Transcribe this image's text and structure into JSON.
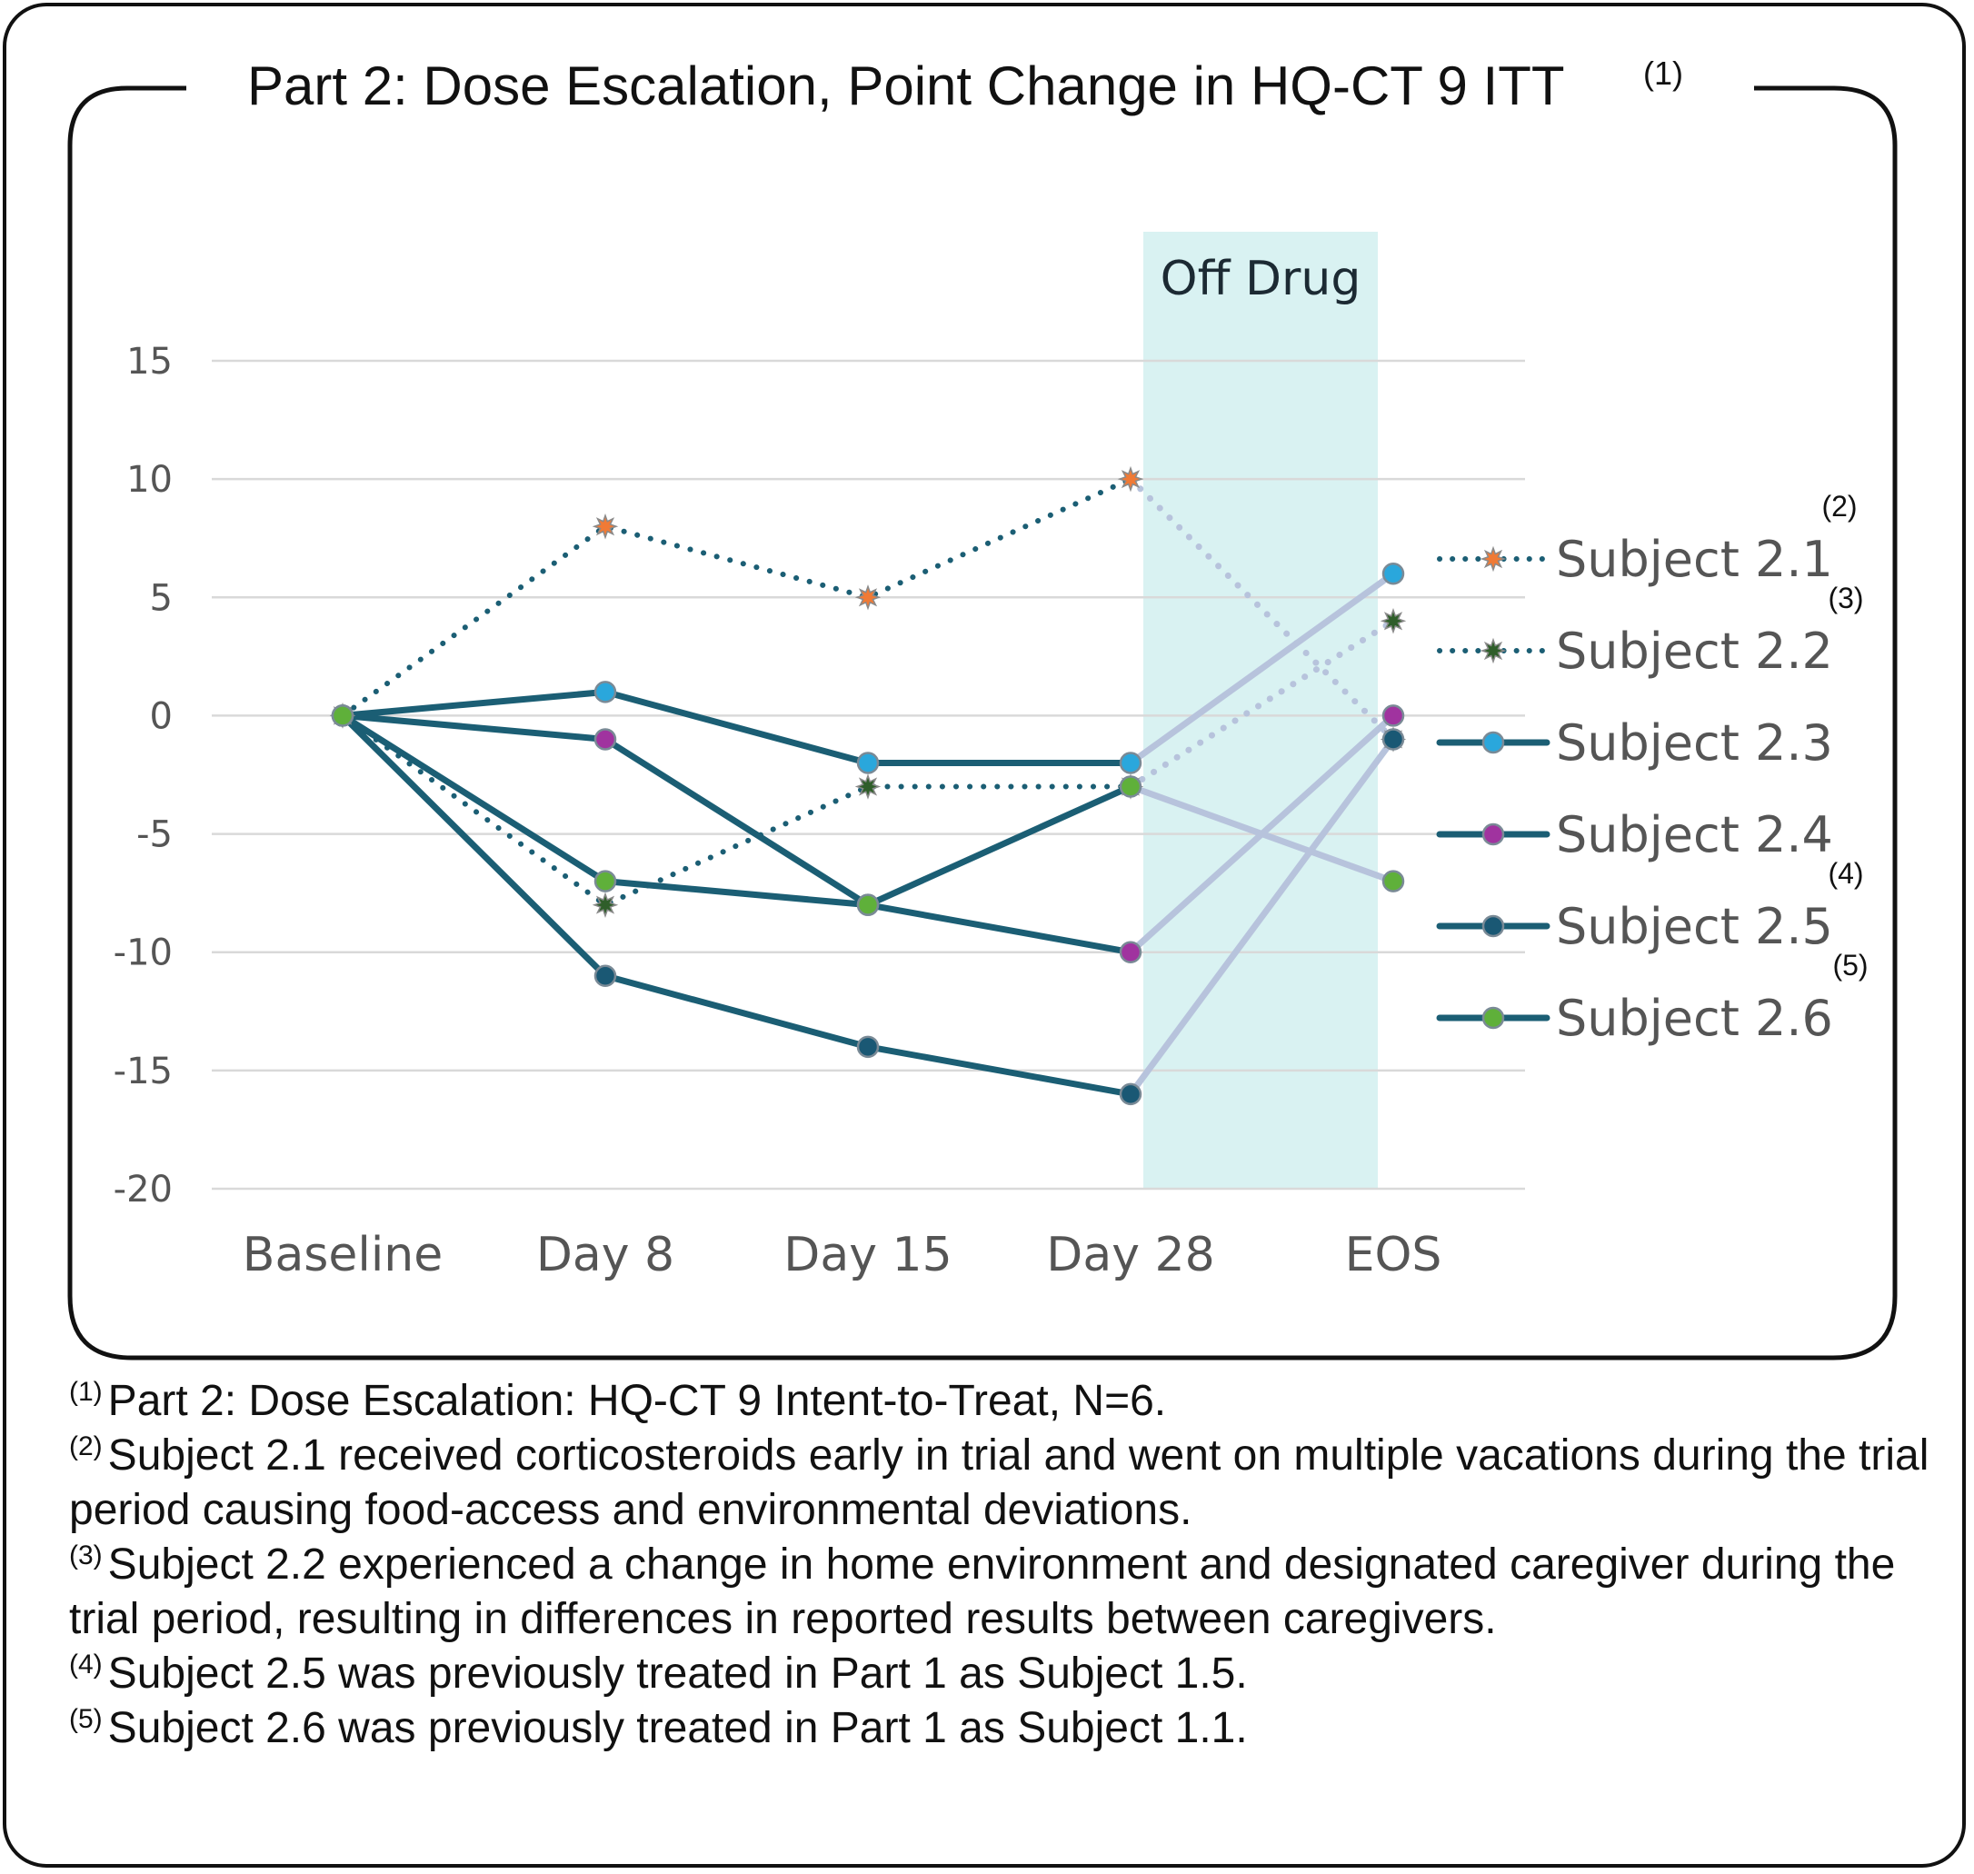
{
  "chart_data": {
    "type": "line",
    "title": "Part 2: Dose Escalation, Point Change in HQ-CT 9 ITT",
    "title_note": "(1)",
    "categories": [
      "Baseline",
      "Day 8",
      "Day 15",
      "Day 28",
      "EOS"
    ],
    "ylim": [
      -20,
      15
    ],
    "yticks": [
      15,
      10,
      5,
      0,
      -5,
      -10,
      -15,
      -20
    ],
    "ytick_labels": [
      "15",
      "10",
      "5",
      "0",
      "-5",
      "-10",
      "-15",
      "-20"
    ],
    "grid": true,
    "legend_position": "right",
    "shaded_region": {
      "label": "Off Drug",
      "from": "Day 28",
      "to": "EOS",
      "color": "#d9f2f2"
    },
    "series": [
      {
        "name": "Subject 2.1",
        "note": "(2)",
        "values": [
          0,
          8,
          5,
          10,
          -1
        ],
        "line_style": "dotted",
        "line_color": "#1b5e74",
        "marker_color": "#f07a35"
      },
      {
        "name": "Subject 2.2",
        "note": "(3)",
        "values": [
          0,
          -8,
          -3,
          -3,
          4
        ],
        "line_style": "dotted",
        "line_color": "#1b5e74",
        "marker_color": "#2f5e2a"
      },
      {
        "name": "Subject 2.3",
        "note": "",
        "values": [
          0,
          1,
          -2,
          -2,
          6
        ],
        "line_style": "solid",
        "line_color": "#1b5e74",
        "marker_color": "#2aa7dc"
      },
      {
        "name": "Subject 2.4",
        "note": "",
        "values": [
          0,
          -1,
          -8,
          -10,
          0
        ],
        "line_style": "solid",
        "line_color": "#1b5e74",
        "marker_color": "#a0339f"
      },
      {
        "name": "Subject 2.5",
        "note": "(4)",
        "values": [
          0,
          -11,
          -14,
          -16,
          -1
        ],
        "line_style": "solid",
        "line_color": "#1b5e74",
        "marker_color": "#1a5874"
      },
      {
        "name": "Subject 2.6",
        "note": "(5)",
        "values": [
          0,
          -7,
          -8,
          -3,
          -7
        ],
        "line_style": "solid",
        "line_color": "#1b5e74",
        "marker_color": "#5fb03a"
      }
    ],
    "off_drug_segment_color": "#b7c3dc"
  },
  "footnotes": [
    {
      "mark": "(1)",
      "text": "Part 2: Dose Escalation: HQ-CT 9 Intent-to-Treat, N=6."
    },
    {
      "mark": "(2)",
      "text": "Subject 2.1 received corticosteroids early in trial and went on multiple vacations during the trial period causing food-access and environmental deviations."
    },
    {
      "mark": "(3)",
      "text": "Subject 2.2 experienced a change in home environment and designated caregiver during the trial period, resulting in differences in reported results between caregivers."
    },
    {
      "mark": "(4)",
      "text": "Subject 2.5 was previously treated in Part 1 as Subject 1.5."
    },
    {
      "mark": "(5)",
      "text": "Subject 2.6 was previously treated in Part 1 as Subject 1.1."
    }
  ]
}
